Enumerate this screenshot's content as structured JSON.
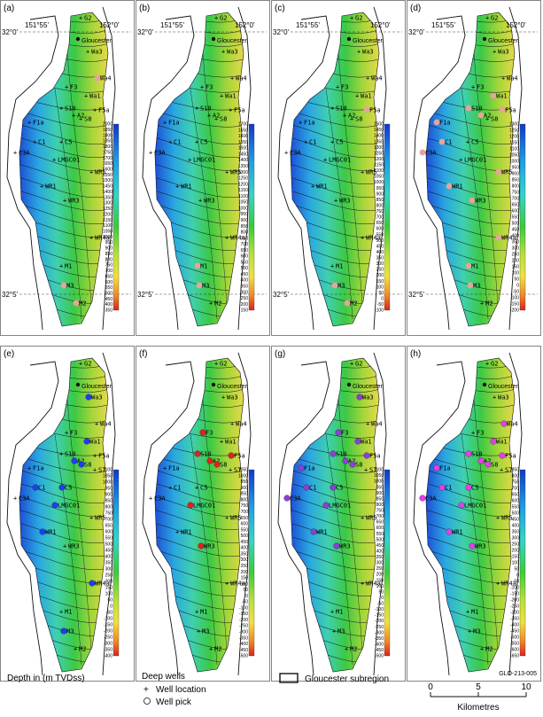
{
  "figure_id": "GLO-213-005",
  "towns": {
    "gloucester": "Gloucester"
  },
  "coords": {
    "lat_top": "32°0'",
    "lon_left": "151°55'",
    "lon_right": "152°0'",
    "lat_bottom": "32°5'"
  },
  "legend": {
    "depth_title": "Depth in (m TVDss)",
    "deep_wells_title": "Deep wells",
    "well_location": "Well location",
    "well_pick": "Well pick",
    "subregion": "Gloucester subregion",
    "scale_ticks": [
      "0",
      "5",
      "10"
    ],
    "scale_unit": "Kilometres"
  },
  "colors": {
    "pick_a": "#e8a39a",
    "pick_e": "#1e3ef0",
    "pick_f": "#e0221a",
    "pick_g": "#8a3fd6",
    "pick_h": "#e23fe6",
    "outline": "#111111"
  },
  "wells": [
    "G2",
    "Wa3",
    "Wa4",
    "F3",
    "Wa1",
    "S10",
    "F5a",
    "A2",
    "S8",
    "F1a",
    "C1",
    "C5",
    "C3A",
    "LMGC01",
    "WR5",
    "WR1",
    "WR3",
    "WR4a",
    "M1",
    "M3",
    "M2"
  ],
  "wells_extra": [
    "S7"
  ],
  "panels": [
    {
      "label": "(a)",
      "scale": [
        "2000",
        "1950",
        "1900",
        "1850",
        "1800",
        "1750",
        "1700",
        "1650",
        "1600",
        "1550",
        "1500",
        "1450",
        "1400",
        "1350",
        "1300",
        "1250",
        "1200",
        "1150",
        "1100",
        "1050",
        "1000",
        "950",
        "900",
        "850",
        "800",
        "750",
        "700",
        "650",
        "600",
        "550",
        "500",
        "450",
        "400",
        "350"
      ]
    },
    {
      "label": "(b)",
      "scale": [
        "1700",
        "1650",
        "1600",
        "1550",
        "1500",
        "1450",
        "1400",
        "1350",
        "1300",
        "1250",
        "1200",
        "1150",
        "1100",
        "1050",
        "1000",
        "950",
        "900",
        "850",
        "800",
        "750",
        "700",
        "650",
        "600",
        "550",
        "500",
        "450",
        "400",
        "350",
        "300",
        "250",
        "200",
        "150"
      ]
    },
    {
      "label": "(c)",
      "scale": [
        "1500",
        "1450",
        "1400",
        "1350",
        "1300",
        "1250",
        "1200",
        "1150",
        "1100",
        "1050",
        "1000",
        "950",
        "900",
        "850",
        "800",
        "750",
        "700",
        "650",
        "600",
        "550",
        "500",
        "450",
        "400",
        "350",
        "300",
        "250",
        "200",
        "150",
        "100",
        "50",
        "0",
        "-50",
        "-100"
      ]
    },
    {
      "label": "(d)",
      "scale": [
        "1300",
        "1250",
        "1200",
        "1150",
        "1100",
        "1050",
        "1000",
        "950",
        "900",
        "850",
        "800",
        "750",
        "700",
        "650",
        "600",
        "550",
        "500",
        "450",
        "400",
        "350",
        "300",
        "250",
        "200",
        "150",
        "100",
        "50",
        "0",
        "-50",
        "-100",
        "-150",
        "-200"
      ]
    },
    {
      "label": "(e)",
      "scale": [
        "1100",
        "1050",
        "1000",
        "950",
        "900",
        "850",
        "800",
        "750",
        "700",
        "650",
        "600",
        "550",
        "500",
        "450",
        "400",
        "350",
        "300",
        "250",
        "200",
        "150",
        "100",
        "50",
        "0",
        "-50",
        "-100",
        "-150",
        "-200",
        "-250",
        "-300",
        "-350",
        "-400"
      ]
    },
    {
      "label": "(f)",
      "scale": [
        "1050",
        "1000",
        "950",
        "900",
        "850",
        "800",
        "750",
        "700",
        "650",
        "600",
        "550",
        "500",
        "450",
        "400",
        "350",
        "300",
        "250",
        "200",
        "150",
        "100",
        "50",
        "0",
        "-50",
        "-100",
        "-150",
        "-200",
        "-250",
        "-300",
        "-350",
        "-400",
        "-450",
        "-500"
      ]
    },
    {
      "label": "(g)",
      "scale": [
        "1100",
        "1050",
        "1000",
        "950",
        "900",
        "850",
        "800",
        "750",
        "700",
        "650",
        "600",
        "550",
        "500",
        "450",
        "400",
        "350",
        "300",
        "250",
        "200",
        "150",
        "100",
        "50",
        "0",
        "-50",
        "-100",
        "-150",
        "-200",
        "-250",
        "-300",
        "-350",
        "-400",
        "-450",
        "-500"
      ]
    },
    {
      "label": "(h)",
      "scale": [
        "850",
        "800",
        "750",
        "700",
        "650",
        "600",
        "550",
        "500",
        "450",
        "400",
        "350",
        "300",
        "250",
        "200",
        "150",
        "100",
        "50",
        "0",
        "-50",
        "-100",
        "-150",
        "-200",
        "-250",
        "-300",
        "-350",
        "-400",
        "-450",
        "-500",
        "-550",
        "-600",
        "-650"
      ]
    }
  ]
}
